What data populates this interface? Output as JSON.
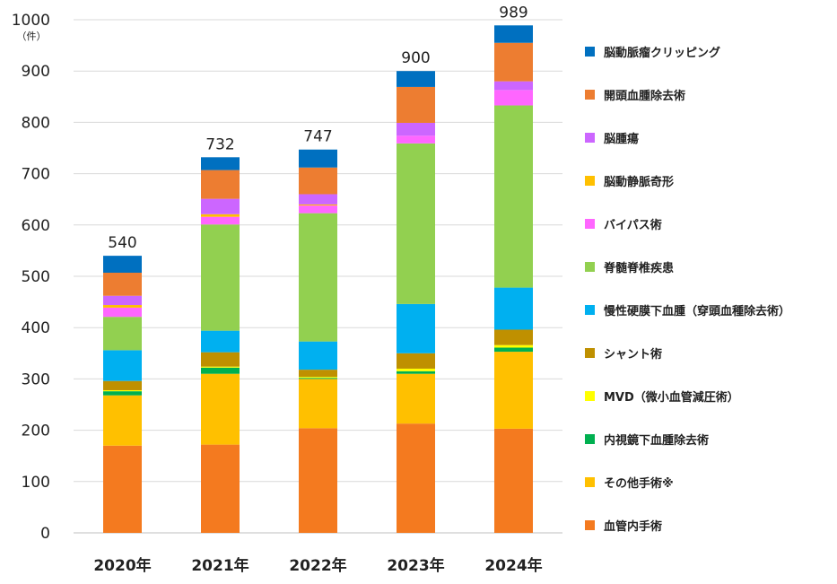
{
  "chart_data": {
    "type": "bar",
    "stacked": true,
    "categories": [
      "2020年",
      "2021年",
      "2022年",
      "2023年",
      "2024年"
    ],
    "ylim": [
      0,
      1000
    ],
    "yticks": [
      0,
      100,
      200,
      300,
      400,
      500,
      600,
      700,
      800,
      900,
      1000
    ],
    "yunit": "（件）",
    "grid": true,
    "legend_position": "right",
    "totals": [
      540,
      732,
      747,
      900,
      989
    ],
    "series": [
      {
        "name": "血管内手術",
        "color": "#F47A1F",
        "values": [
          170,
          172,
          204,
          213,
          203
        ]
      },
      {
        "name": "その他手術※",
        "color": "#FFC000",
        "values": [
          98,
          138,
          96,
          97,
          150
        ]
      },
      {
        "name": "内視鏡下血腫除去術",
        "color": "#00B050",
        "values": [
          8,
          12,
          2,
          5,
          8
        ]
      },
      {
        "name": "MVD（微小血管減圧術）",
        "color": "#FFFF00",
        "values": [
          2,
          2,
          2,
          5,
          5
        ]
      },
      {
        "name": "シャント術",
        "color": "#BF9000",
        "values": [
          18,
          28,
          14,
          30,
          30
        ]
      },
      {
        "name": "慢性硬膜下血腫（穿頭血種除去術）",
        "color": "#00B0F0",
        "values": [
          60,
          42,
          55,
          96,
          82
        ]
      },
      {
        "name": "脊髄脊椎疾患",
        "color": "#92D050",
        "values": [
          65,
          207,
          250,
          313,
          355
        ]
      },
      {
        "name": "バイパス術",
        "color": "#FF66FF",
        "values": [
          18,
          15,
          15,
          15,
          30
        ]
      },
      {
        "name": "脳動静脈奇形",
        "color": "#FFC000",
        "values": [
          5,
          5,
          2,
          0,
          0
        ]
      },
      {
        "name": "脳腫瘍",
        "color": "#CC66FF",
        "values": [
          18,
          30,
          20,
          25,
          17
        ]
      },
      {
        "name": "開頭血腫除去術",
        "color": "#ED7D31",
        "values": [
          45,
          56,
          52,
          70,
          75
        ]
      },
      {
        "name": "脳動脈瘤クリッピング",
        "color": "#0070C0",
        "values": [
          33,
          25,
          35,
          31,
          34
        ]
      }
    ]
  }
}
